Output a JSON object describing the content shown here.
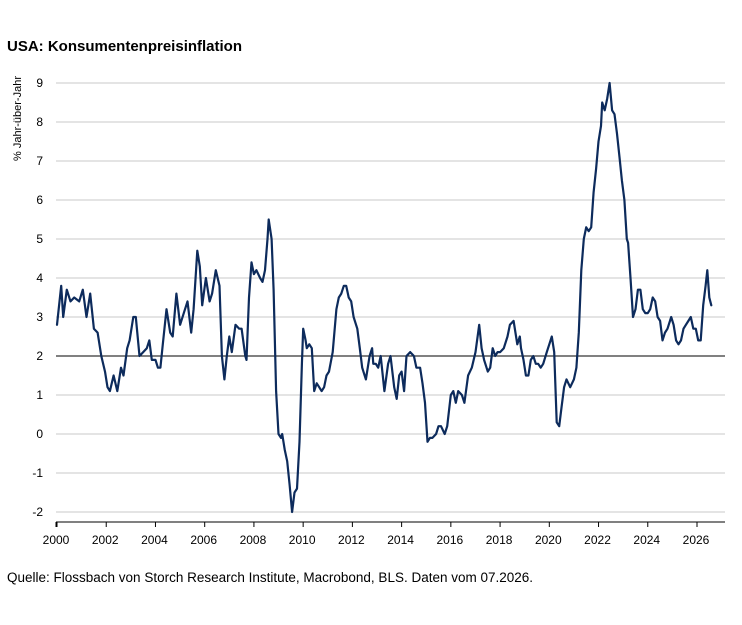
{
  "chart_data": {
    "type": "line",
    "title": "USA: Konsumentenpreisinflation",
    "ylabel": "% Jahr-über-Jahr",
    "xlabel": "",
    "source": "Quelle: Flossbach von Storch Research Institute, Macrobond, BLS. Daten vom 07.2026.",
    "xlim": [
      2000,
      2027.2
    ],
    "ylim": [
      -2.2,
      9.6
    ],
    "x_ticks": [
      "2000",
      "2002",
      "2004",
      "2006",
      "2008",
      "2010",
      "2012",
      "2014",
      "2016",
      "2018",
      "2020",
      "2022",
      "2024",
      "2026"
    ],
    "y_ticks": [
      "-2",
      "-1",
      "0",
      "1",
      "2",
      "3",
      "4",
      "5",
      "6",
      "7",
      "8",
      "9"
    ],
    "grid": "horizontal",
    "reference_line": 2,
    "series": [
      {
        "color": "#0d2b5c",
        "points": [
          [
            2000.0,
            2.8
          ],
          [
            2000.17,
            3.8
          ],
          [
            2000.25,
            3.0
          ],
          [
            2000.4,
            3.7
          ],
          [
            2000.55,
            3.4
          ],
          [
            2000.7,
            3.5
          ],
          [
            2000.9,
            3.4
          ],
          [
            2001.05,
            3.7
          ],
          [
            2001.2,
            3.0
          ],
          [
            2001.35,
            3.6
          ],
          [
            2001.5,
            2.7
          ],
          [
            2001.65,
            2.6
          ],
          [
            2001.8,
            2.0
          ],
          [
            2001.95,
            1.6
          ],
          [
            2002.05,
            1.2
          ],
          [
            2002.15,
            1.1
          ],
          [
            2002.3,
            1.5
          ],
          [
            2002.45,
            1.1
          ],
          [
            2002.6,
            1.7
          ],
          [
            2002.7,
            1.5
          ],
          [
            2002.85,
            2.2
          ],
          [
            2002.95,
            2.4
          ],
          [
            2003.1,
            3.0
          ],
          [
            2003.2,
            3.0
          ],
          [
            2003.35,
            2.0
          ],
          [
            2003.5,
            2.1
          ],
          [
            2003.65,
            2.2
          ],
          [
            2003.75,
            2.4
          ],
          [
            2003.85,
            1.9
          ],
          [
            2004.0,
            1.9
          ],
          [
            2004.1,
            1.7
          ],
          [
            2004.2,
            1.7
          ],
          [
            2004.3,
            2.3
          ],
          [
            2004.45,
            3.2
          ],
          [
            2004.6,
            2.6
          ],
          [
            2004.7,
            2.5
          ],
          [
            2004.85,
            3.6
          ],
          [
            2005.0,
            2.8
          ],
          [
            2005.15,
            3.1
          ],
          [
            2005.3,
            3.4
          ],
          [
            2005.45,
            2.6
          ],
          [
            2005.55,
            3.2
          ],
          [
            2005.7,
            4.7
          ],
          [
            2005.8,
            4.3
          ],
          [
            2005.9,
            3.3
          ],
          [
            2006.05,
            4.0
          ],
          [
            2006.2,
            3.4
          ],
          [
            2006.3,
            3.6
          ],
          [
            2006.45,
            4.2
          ],
          [
            2006.6,
            3.8
          ],
          [
            2006.7,
            2.0
          ],
          [
            2006.8,
            1.4
          ],
          [
            2006.9,
            2.0
          ],
          [
            2007.0,
            2.5
          ],
          [
            2007.1,
            2.1
          ],
          [
            2007.25,
            2.8
          ],
          [
            2007.4,
            2.7
          ],
          [
            2007.5,
            2.7
          ],
          [
            2007.65,
            2.0
          ],
          [
            2007.7,
            1.9
          ],
          [
            2007.8,
            3.5
          ],
          [
            2007.9,
            4.4
          ],
          [
            2008.0,
            4.1
          ],
          [
            2008.1,
            4.2
          ],
          [
            2008.25,
            4.0
          ],
          [
            2008.35,
            3.9
          ],
          [
            2008.45,
            4.2
          ],
          [
            2008.55,
            5.0
          ],
          [
            2008.6,
            5.5
          ],
          [
            2008.72,
            5.0
          ],
          [
            2008.8,
            3.7
          ],
          [
            2008.9,
            1.1
          ],
          [
            2009.0,
            0.0
          ],
          [
            2009.1,
            -0.1
          ],
          [
            2009.15,
            0.0
          ],
          [
            2009.25,
            -0.4
          ],
          [
            2009.35,
            -0.7
          ],
          [
            2009.45,
            -1.3
          ],
          [
            2009.55,
            -2.0
          ],
          [
            2009.65,
            -1.5
          ],
          [
            2009.75,
            -1.4
          ],
          [
            2009.85,
            -0.2
          ],
          [
            2009.95,
            1.8
          ],
          [
            2010.0,
            2.7
          ],
          [
            2010.1,
            2.4
          ],
          [
            2010.15,
            2.2
          ],
          [
            2010.25,
            2.3
          ],
          [
            2010.35,
            2.2
          ],
          [
            2010.45,
            1.1
          ],
          [
            2010.55,
            1.3
          ],
          [
            2010.65,
            1.2
          ],
          [
            2010.75,
            1.1
          ],
          [
            2010.85,
            1.2
          ],
          [
            2010.95,
            1.5
          ],
          [
            2011.05,
            1.6
          ],
          [
            2011.2,
            2.1
          ],
          [
            2011.35,
            3.2
          ],
          [
            2011.45,
            3.5
          ],
          [
            2011.55,
            3.6
          ],
          [
            2011.65,
            3.8
          ],
          [
            2011.75,
            3.8
          ],
          [
            2011.85,
            3.5
          ],
          [
            2011.95,
            3.4
          ],
          [
            2012.05,
            3.0
          ],
          [
            2012.2,
            2.7
          ],
          [
            2012.3,
            2.2
          ],
          [
            2012.4,
            1.7
          ],
          [
            2012.55,
            1.4
          ],
          [
            2012.7,
            2.0
          ],
          [
            2012.8,
            2.2
          ],
          [
            2012.85,
            1.8
          ],
          [
            2012.95,
            1.8
          ],
          [
            2013.05,
            1.7
          ],
          [
            2013.15,
            2.0
          ],
          [
            2013.3,
            1.1
          ],
          [
            2013.45,
            1.8
          ],
          [
            2013.55,
            2.0
          ],
          [
            2013.7,
            1.2
          ],
          [
            2013.8,
            0.9
          ],
          [
            2013.9,
            1.5
          ],
          [
            2014.0,
            1.6
          ],
          [
            2014.1,
            1.1
          ],
          [
            2014.2,
            2.0
          ],
          [
            2014.35,
            2.1
          ],
          [
            2014.5,
            2.0
          ],
          [
            2014.6,
            1.7
          ],
          [
            2014.75,
            1.7
          ],
          [
            2014.85,
            1.3
          ],
          [
            2014.95,
            0.8
          ],
          [
            2015.05,
            -0.2
          ],
          [
            2015.15,
            -0.1
          ],
          [
            2015.25,
            -0.1
          ],
          [
            2015.4,
            0.0
          ],
          [
            2015.5,
            0.2
          ],
          [
            2015.6,
            0.2
          ],
          [
            2015.75,
            0.0
          ],
          [
            2015.85,
            0.2
          ],
          [
            2016.0,
            1.0
          ],
          [
            2016.1,
            1.1
          ],
          [
            2016.2,
            0.8
          ],
          [
            2016.3,
            1.1
          ],
          [
            2016.45,
            1.0
          ],
          [
            2016.55,
            0.8
          ],
          [
            2016.7,
            1.5
          ],
          [
            2016.85,
            1.7
          ],
          [
            2017.0,
            2.1
          ],
          [
            2017.15,
            2.8
          ],
          [
            2017.25,
            2.2
          ],
          [
            2017.35,
            1.9
          ],
          [
            2017.5,
            1.6
          ],
          [
            2017.6,
            1.7
          ],
          [
            2017.7,
            2.2
          ],
          [
            2017.8,
            2.0
          ],
          [
            2017.9,
            2.1
          ],
          [
            2018.0,
            2.1
          ],
          [
            2018.15,
            2.2
          ],
          [
            2018.3,
            2.5
          ],
          [
            2018.4,
            2.8
          ],
          [
            2018.55,
            2.9
          ],
          [
            2018.7,
            2.3
          ],
          [
            2018.8,
            2.5
          ],
          [
            2018.85,
            2.2
          ],
          [
            2018.95,
            1.9
          ],
          [
            2019.05,
            1.5
          ],
          [
            2019.15,
            1.5
          ],
          [
            2019.25,
            1.9
          ],
          [
            2019.35,
            2.0
          ],
          [
            2019.45,
            1.8
          ],
          [
            2019.55,
            1.8
          ],
          [
            2019.65,
            1.7
          ],
          [
            2019.75,
            1.8
          ],
          [
            2019.9,
            2.1
          ],
          [
            2020.0,
            2.3
          ],
          [
            2020.1,
            2.5
          ],
          [
            2020.2,
            2.1
          ],
          [
            2020.3,
            0.3
          ],
          [
            2020.4,
            0.2
          ],
          [
            2020.5,
            0.7
          ],
          [
            2020.6,
            1.2
          ],
          [
            2020.7,
            1.4
          ],
          [
            2020.85,
            1.2
          ],
          [
            2021.0,
            1.4
          ],
          [
            2021.1,
            1.7
          ],
          [
            2021.2,
            2.6
          ],
          [
            2021.3,
            4.2
          ],
          [
            2021.4,
            5.0
          ],
          [
            2021.5,
            5.3
          ],
          [
            2021.6,
            5.2
          ],
          [
            2021.7,
            5.3
          ],
          [
            2021.8,
            6.2
          ],
          [
            2021.9,
            6.8
          ],
          [
            2022.0,
            7.5
          ],
          [
            2022.1,
            7.9
          ],
          [
            2022.15,
            8.5
          ],
          [
            2022.25,
            8.3
          ],
          [
            2022.35,
            8.6
          ],
          [
            2022.45,
            9.0
          ],
          [
            2022.55,
            8.3
          ],
          [
            2022.65,
            8.2
          ],
          [
            2022.75,
            7.7
          ],
          [
            2022.85,
            7.1
          ],
          [
            2022.95,
            6.5
          ],
          [
            2023.05,
            6.0
          ],
          [
            2023.15,
            5.0
          ],
          [
            2023.2,
            4.9
          ],
          [
            2023.3,
            4.0
          ],
          [
            2023.4,
            3.0
          ],
          [
            2023.5,
            3.2
          ],
          [
            2023.6,
            3.7
          ],
          [
            2023.7,
            3.7
          ],
          [
            2023.8,
            3.2
          ],
          [
            2023.9,
            3.1
          ],
          [
            2024.0,
            3.1
          ],
          [
            2024.1,
            3.2
          ],
          [
            2024.2,
            3.5
          ],
          [
            2024.3,
            3.4
          ],
          [
            2024.4,
            3.0
          ],
          [
            2024.5,
            2.9
          ],
          [
            2024.6,
            2.4
          ],
          [
            2024.7,
            2.6
          ],
          [
            2024.8,
            2.7
          ],
          [
            2024.95,
            3.0
          ],
          [
            2025.05,
            2.8
          ],
          [
            2025.15,
            2.4
          ],
          [
            2025.25,
            2.3
          ],
          [
            2025.35,
            2.4
          ],
          [
            2025.45,
            2.7
          ],
          [
            2025.55,
            2.8
          ],
          [
            2025.65,
            2.9
          ],
          [
            2025.75,
            3.0
          ],
          [
            2025.85,
            2.7
          ],
          [
            2025.95,
            2.7
          ],
          [
            2026.05,
            2.4
          ],
          [
            2026.15,
            2.4
          ],
          [
            2026.25,
            3.3
          ],
          [
            2026.35,
            3.8
          ],
          [
            2026.42,
            4.2
          ],
          [
            2026.5,
            3.5
          ],
          [
            2026.58,
            3.3
          ]
        ]
      }
    ]
  }
}
